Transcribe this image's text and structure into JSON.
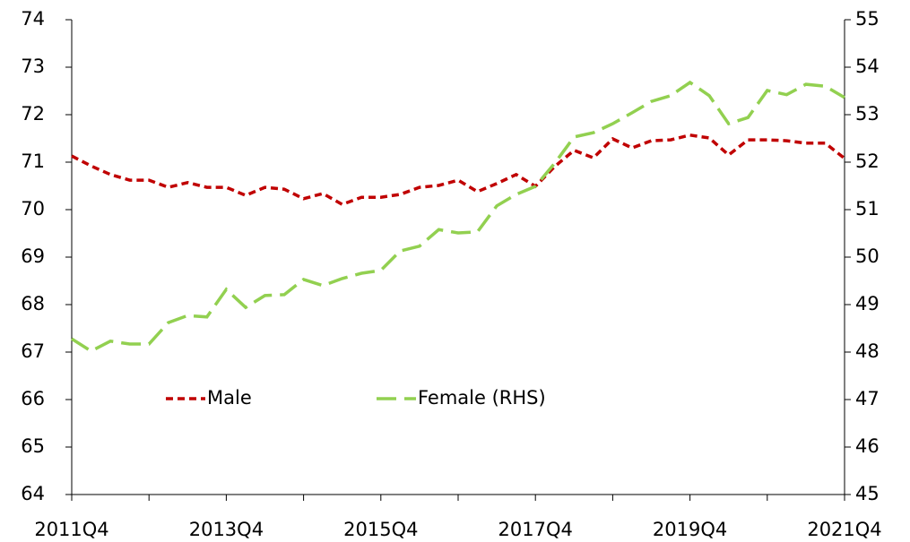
{
  "chart_data": {
    "type": "line",
    "categories": [
      "2011Q4",
      null,
      null,
      null,
      null,
      null,
      null,
      null,
      "2013Q4",
      null,
      null,
      null,
      null,
      null,
      null,
      null,
      "2015Q4",
      null,
      null,
      null,
      null,
      null,
      null,
      null,
      "2017Q4",
      null,
      null,
      null,
      null,
      null,
      null,
      null,
      "2019Q4",
      null,
      null,
      null,
      null,
      null,
      null,
      null,
      "2021Q4"
    ],
    "series": [
      {
        "name": "Male",
        "color": "#c00000",
        "dash": "8 5",
        "values": [
          71.13,
          70.92,
          70.74,
          70.62,
          70.62,
          70.47,
          70.57,
          70.47,
          70.47,
          70.3,
          70.47,
          70.43,
          70.23,
          70.34,
          70.11,
          70.26,
          70.26,
          70.32,
          70.47,
          70.51,
          70.62,
          70.38,
          70.55,
          70.74,
          70.49,
          70.91,
          71.25,
          71.09,
          71.49,
          71.3,
          71.45,
          71.47,
          71.57,
          71.51,
          71.15,
          71.47,
          71.47,
          71.45,
          71.4,
          71.4,
          71.08
        ]
      },
      {
        "name": "Female (RHS)",
        "color": "#92d050",
        "dash": "22 9",
        "axis": "y2",
        "values": [
          48.28,
          48.02,
          48.23,
          48.17,
          48.17,
          48.62,
          48.77,
          48.74,
          49.32,
          48.94,
          49.19,
          49.21,
          49.53,
          49.4,
          49.55,
          49.66,
          49.72,
          50.13,
          50.23,
          50.58,
          50.51,
          50.53,
          51.08,
          51.32,
          51.49,
          51.98,
          52.53,
          52.62,
          52.81,
          53.04,
          53.28,
          53.4,
          53.68,
          53.4,
          52.81,
          52.94,
          53.51,
          53.42,
          53.64,
          53.6,
          53.36
        ]
      }
    ],
    "ylim": [
      64,
      74
    ],
    "yticks": [
      64,
      65,
      66,
      67,
      68,
      69,
      70,
      71,
      72,
      73,
      74
    ],
    "y2lim": [
      45,
      55
    ],
    "y2ticks": [
      45,
      46,
      47,
      48,
      49,
      50,
      51,
      52,
      53,
      54,
      55
    ],
    "grid": false
  }
}
